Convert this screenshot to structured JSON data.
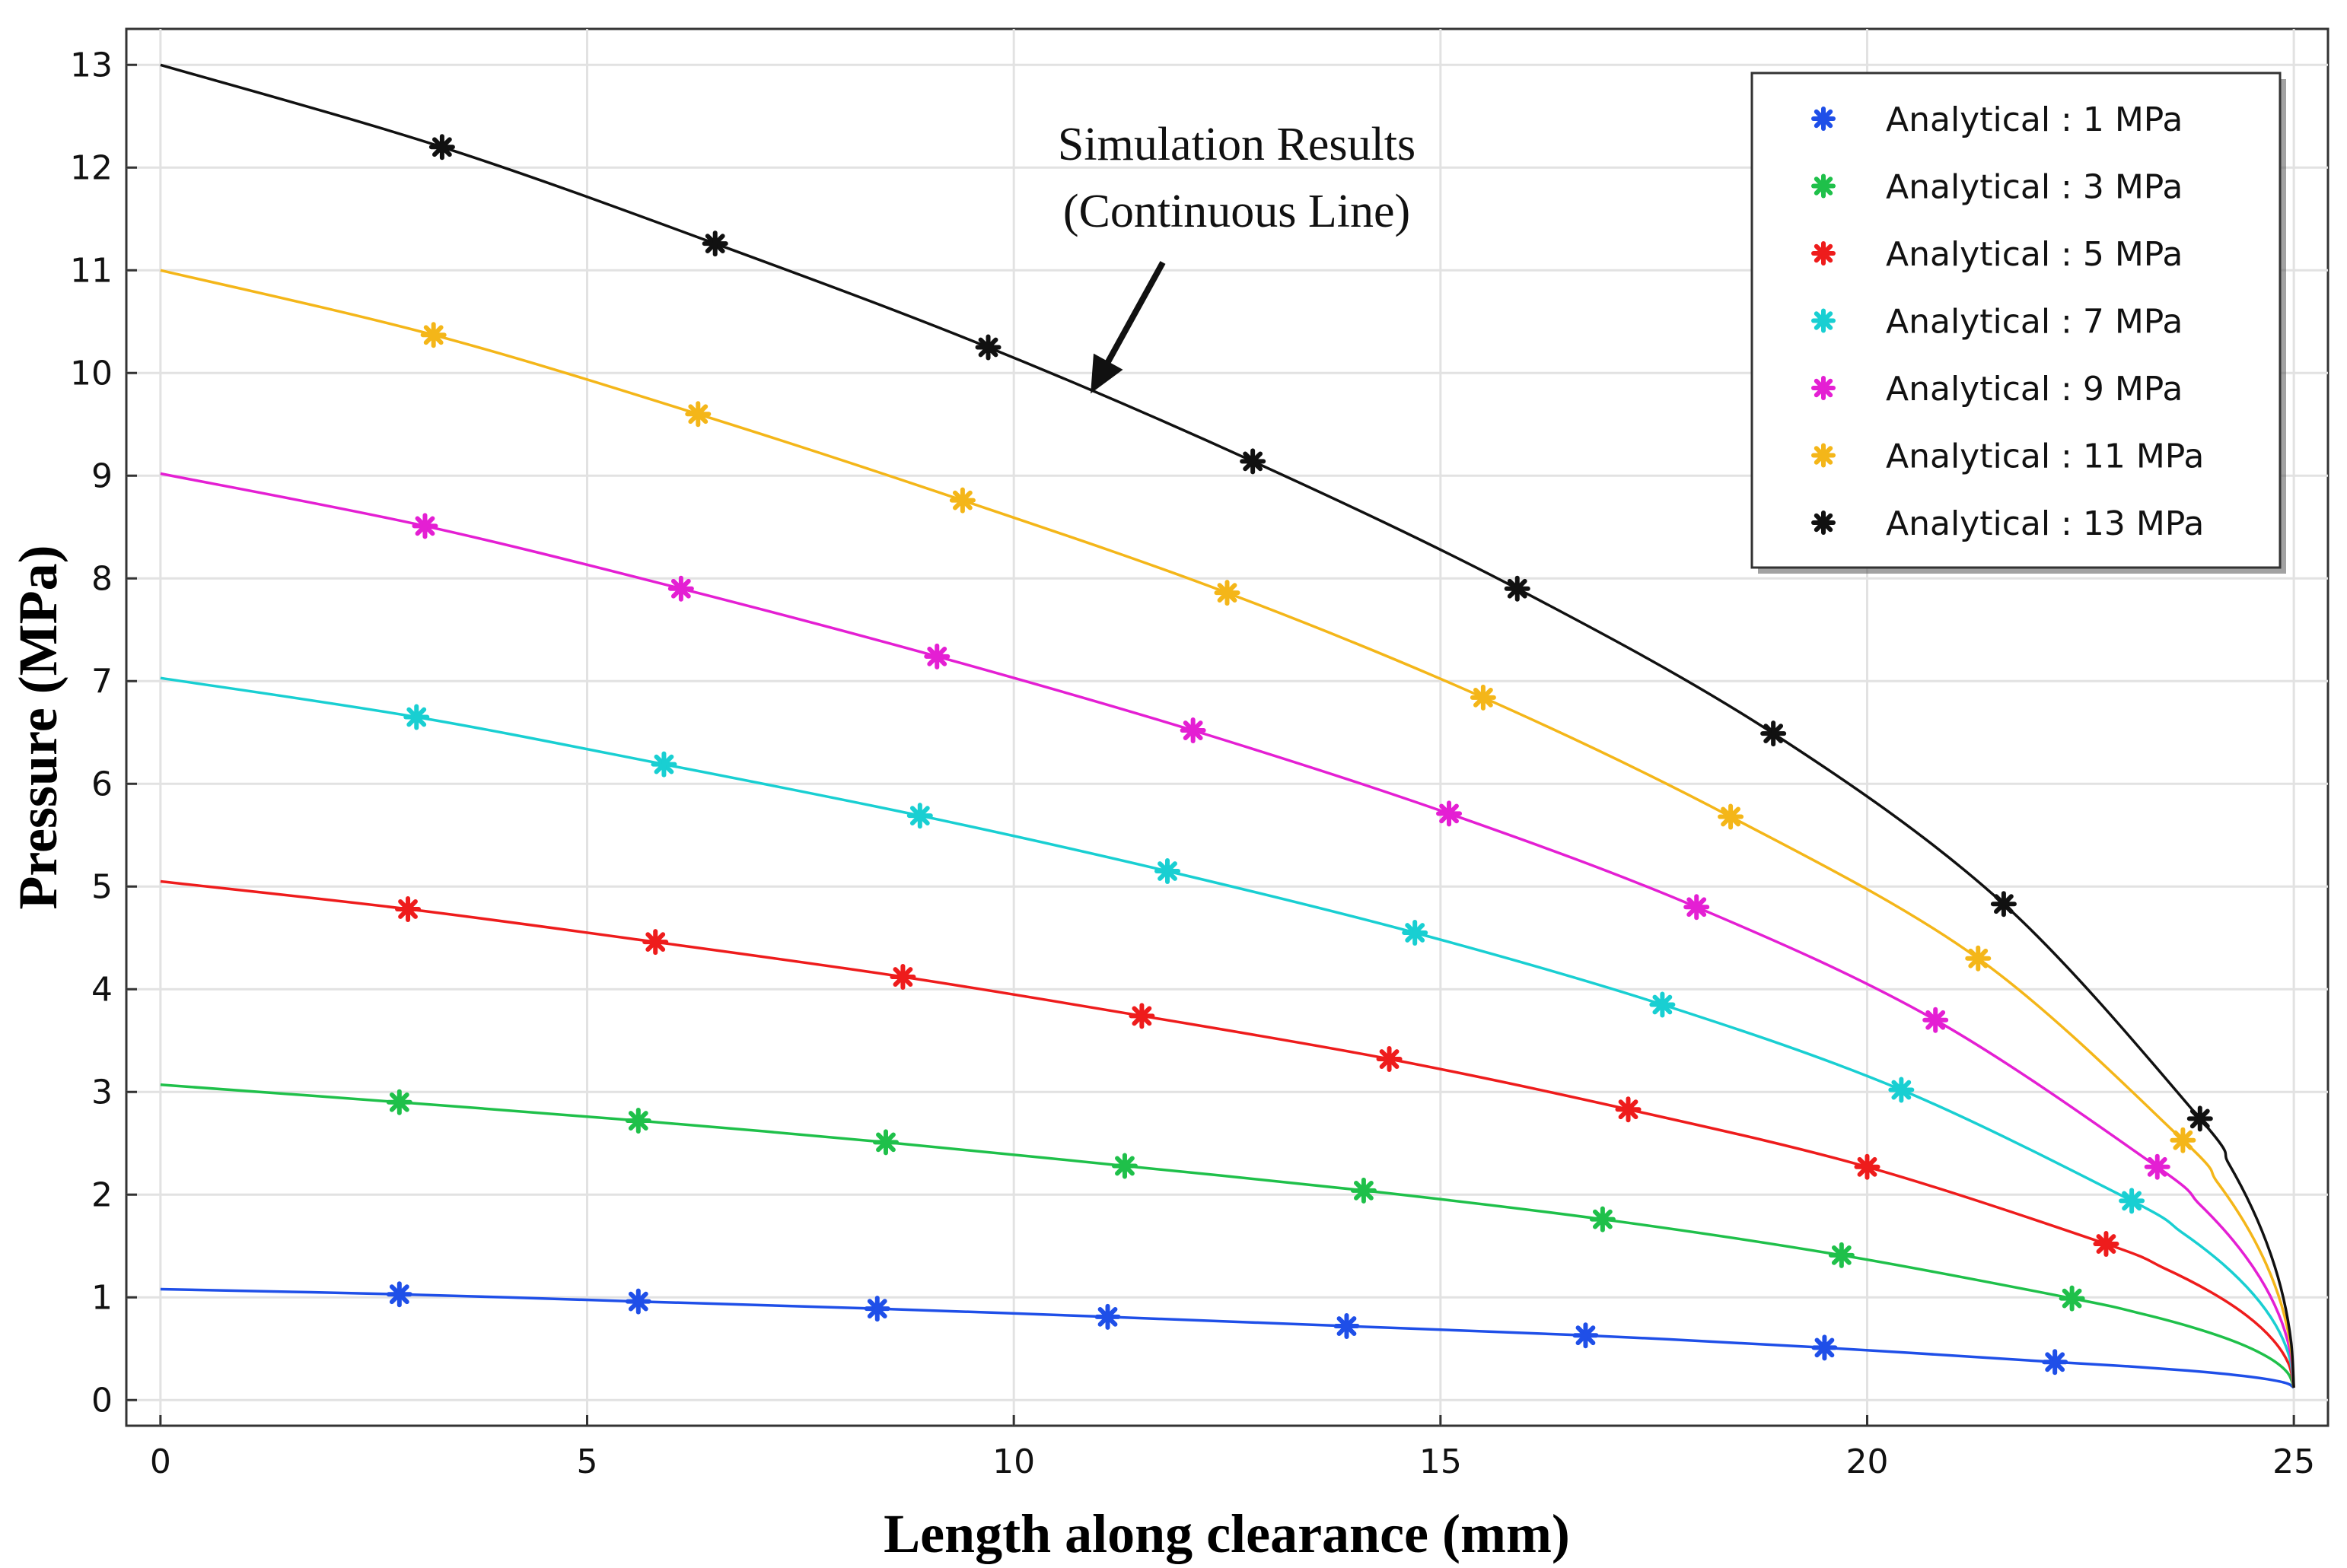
{
  "chart_data": {
    "type": "line",
    "title": "",
    "xlabel": "Length along clearance (mm)",
    "ylabel": "Pressure (MPa)",
    "xlim": [
      -0.4,
      25.4
    ],
    "ylim": [
      -0.25,
      13.35
    ],
    "xticks": [
      0,
      5,
      10,
      15,
      20,
      25
    ],
    "yticks": [
      0,
      1,
      2,
      3,
      4,
      5,
      6,
      7,
      8,
      9,
      10,
      11,
      12,
      13
    ],
    "grid": true,
    "legend_position": "top-right",
    "annotation": {
      "line1": "Simulation Results",
      "line2": "(Continuous Line)",
      "points_to": {
        "x": 10.9,
        "y": 9.8
      }
    },
    "series": [
      {
        "name": "Analytical : 1 MPa",
        "inlet": 1.08,
        "outlet": 0.12,
        "color": "#1f4fe8",
        "x": [
          2.8,
          5.6,
          8.4,
          11.1,
          13.9,
          16.7,
          19.5,
          22.2
        ],
        "y": [
          1.03,
          0.96,
          0.89,
          0.81,
          0.72,
          0.63,
          0.51,
          0.37
        ]
      },
      {
        "name": "Analytical : 3 MPa",
        "inlet": 3.07,
        "outlet": 0.12,
        "color": "#1fc04a",
        "x": [
          2.8,
          5.6,
          8.5,
          11.3,
          14.1,
          16.9,
          19.7,
          22.4
        ],
        "y": [
          2.9,
          2.72,
          2.51,
          2.28,
          2.04,
          1.76,
          1.41,
          0.99
        ]
      },
      {
        "name": "Analytical : 5 MPa",
        "inlet": 5.05,
        "outlet": 0.12,
        "color": "#ee1c1c",
        "x": [
          2.9,
          5.8,
          8.7,
          11.5,
          14.4,
          17.2,
          20.0,
          22.8
        ],
        "y": [
          4.78,
          4.46,
          4.12,
          3.74,
          3.32,
          2.83,
          2.27,
          1.52
        ]
      },
      {
        "name": "Analytical : 7 MPa",
        "inlet": 7.03,
        "outlet": 0.12,
        "color": "#19cfd2",
        "x": [
          3.0,
          5.9,
          8.9,
          11.8,
          14.7,
          17.6,
          20.4,
          23.1
        ],
        "y": [
          6.65,
          6.19,
          5.69,
          5.15,
          4.55,
          3.85,
          3.02,
          1.94
        ]
      },
      {
        "name": "Analytical : 9 MPa",
        "inlet": 9.02,
        "outlet": 0.12,
        "color": "#e41fd3",
        "x": [
          3.1,
          6.1,
          9.1,
          12.1,
          15.1,
          18.0,
          20.8,
          23.4
        ],
        "y": [
          8.51,
          7.9,
          7.24,
          6.52,
          5.71,
          4.8,
          3.7,
          2.27
        ]
      },
      {
        "name": "Analytical : 11 MPa",
        "inlet": 11.0,
        "outlet": 0.12,
        "color": "#f4b619",
        "x": [
          3.2,
          6.3,
          9.4,
          12.5,
          15.5,
          18.4,
          21.3,
          23.7
        ],
        "y": [
          10.37,
          9.6,
          8.76,
          7.86,
          6.84,
          5.68,
          4.3,
          2.53
        ]
      },
      {
        "name": "Analytical : 13 MPa",
        "inlet": 13.0,
        "outlet": 0.12,
        "color": "#111111",
        "x": [
          3.3,
          6.5,
          9.7,
          12.8,
          15.9,
          18.9,
          21.6,
          23.9
        ],
        "y": [
          12.2,
          11.26,
          10.25,
          9.14,
          7.9,
          6.49,
          4.83,
          2.74
        ]
      }
    ]
  }
}
